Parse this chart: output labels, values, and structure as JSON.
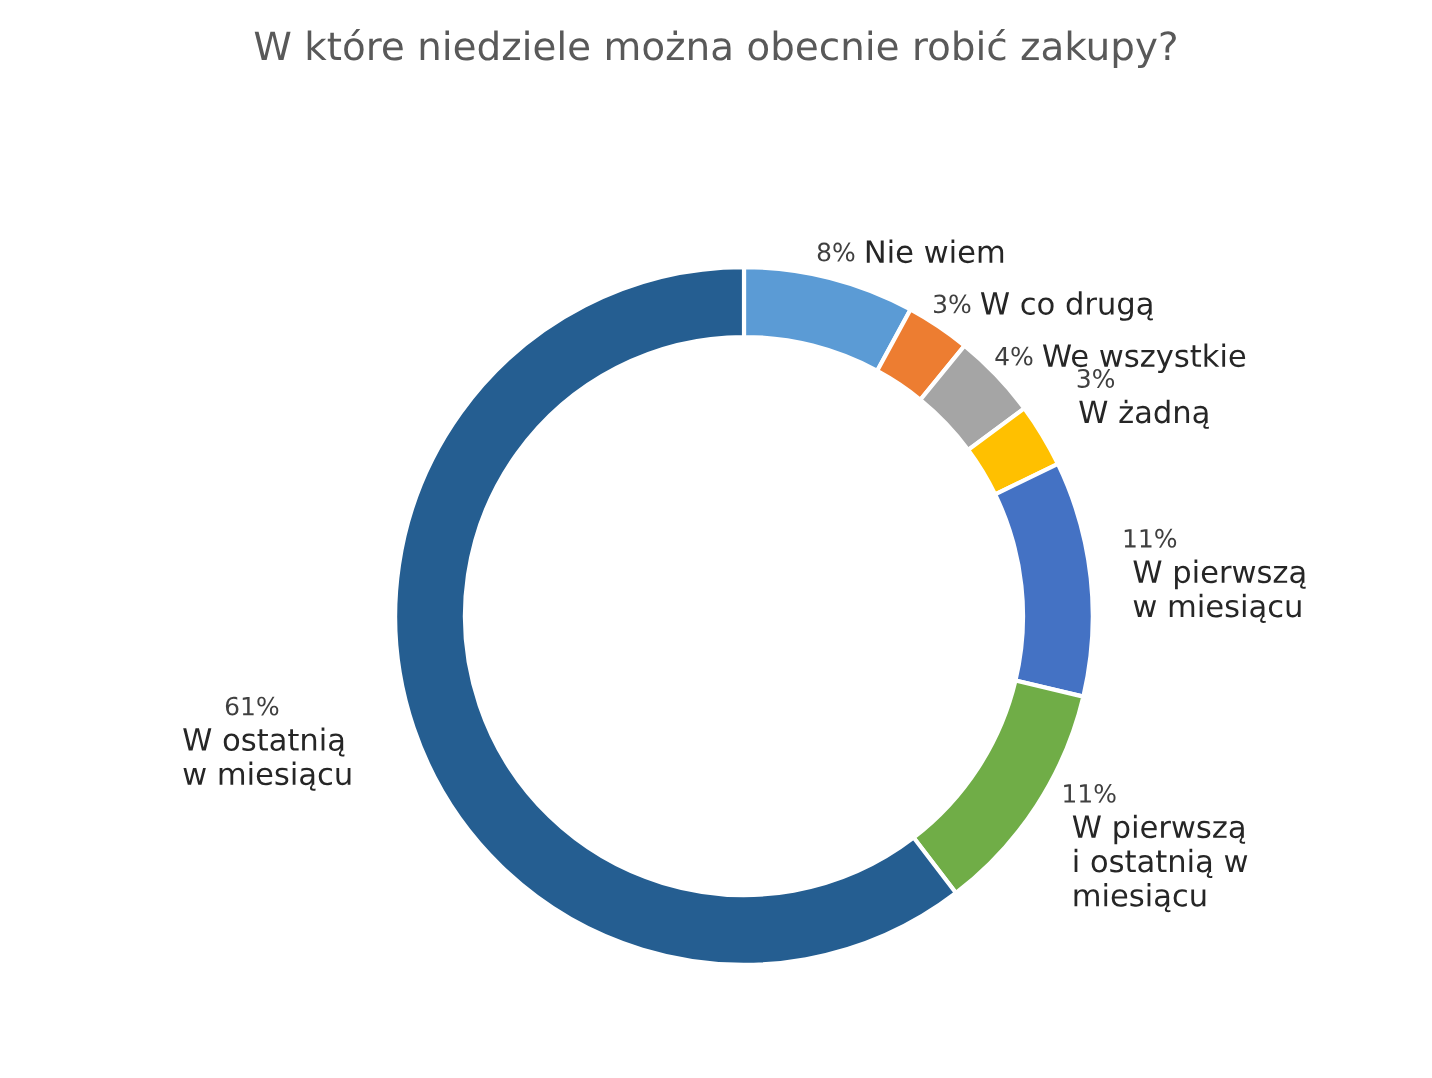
{
  "chart_data": {
    "type": "donut",
    "title": "W które niedziele można obecnie robić zakupy?",
    "categories": [
      "Nie wiem",
      "W co drugą",
      "We wszystkie",
      "W żadną",
      "W pierwszą\nw miesiącu",
      "W pierwszą\ni ostatnią w\nmiesiącu",
      "W ostatnią\nw miesiącu"
    ],
    "values": [
      8,
      3,
      4,
      3,
      11,
      11,
      61
    ],
    "colors": [
      "#5b9bd5",
      "#ed7d31",
      "#a5a5a5",
      "#ffc000",
      "#4472c4",
      "#70ad47",
      "#255e91"
    ],
    "value_labels": [
      "8%",
      "3%",
      "4%",
      "3%",
      "11%",
      "11%",
      "61%"
    ],
    "legend": false
  }
}
